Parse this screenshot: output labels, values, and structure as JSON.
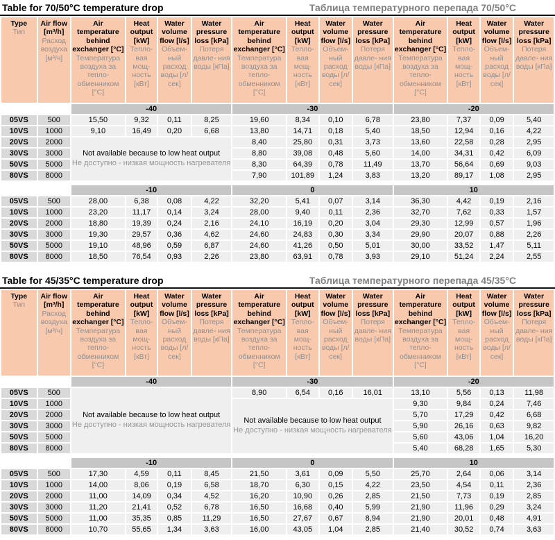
{
  "colors": {
    "header_bg": "#f9c9ae",
    "band_bg": "#c6c6c6",
    "label_bg": "#d9d9d9",
    "cell_bg": "#efefef",
    "ru_text": "#8f8f8f",
    "title_ru_text": "#808080"
  },
  "column_headers": {
    "type": {
      "en": "Type",
      "ru": "Тип"
    },
    "air_flow": {
      "en": "Air flow [m³/h]",
      "ru": "Расход воздуха [м³/ч]"
    },
    "group": [
      {
        "en": "Air temperature behind exchanger [°C]",
        "ru": "Температура воздуха за тепло- обменником [°C]"
      },
      {
        "en": "Heat output [kW]",
        "ru": "Тепло- вая мощ- ность [кВт]"
      },
      {
        "en": "Water volume flow [l/s]",
        "ru": "Объем- ный расход воды [л/сек]"
      },
      {
        "en": "Water pressure loss [kPa]",
        "ru": "Потеря давле- ния воды [кПа]"
      }
    ]
  },
  "not_available": {
    "en": "Not available because to low heat output",
    "ru": "Не доступно - низкая мощность нагревателя"
  },
  "tables": [
    {
      "title_en": "Table for 70/50°C temperature drop",
      "title_ru": "Таблица температурного перепада 70/50°C",
      "sections": [
        {
          "bands": [
            "-40",
            "-30",
            "-20"
          ],
          "na_blocks": [
            {
              "group": 0,
              "from_row": 2,
              "to_row": 5
            }
          ],
          "rows": [
            {
              "type": "05VS",
              "flow": "500",
              "groups": [
                [
                  "15,50",
                  "9,32",
                  "0,11",
                  "8,25"
                ],
                [
                  "19,60",
                  "8,34",
                  "0,10",
                  "6,78"
                ],
                [
                  "23,80",
                  "7,37",
                  "0,09",
                  "5,40"
                ]
              ]
            },
            {
              "type": "10VS",
              "flow": "1000",
              "groups": [
                [
                  "9,10",
                  "16,49",
                  "0,20",
                  "6,68"
                ],
                [
                  "13,80",
                  "14,71",
                  "0,18",
                  "5,40"
                ],
                [
                  "18,50",
                  "12,94",
                  "0,16",
                  "4,22"
                ]
              ]
            },
            {
              "type": "20VS",
              "flow": "2000",
              "groups": [
                null,
                [
                  "8,40",
                  "25,80",
                  "0,31",
                  "3,73"
                ],
                [
                  "13,60",
                  "22,58",
                  "0,28",
                  "2,95"
                ]
              ]
            },
            {
              "type": "30VS",
              "flow": "3000",
              "groups": [
                null,
                [
                  "8,80",
                  "39,08",
                  "0,48",
                  "5,60"
                ],
                [
                  "14,00",
                  "34,31",
                  "0,42",
                  "6,09"
                ]
              ]
            },
            {
              "type": "50VS",
              "flow": "5000",
              "groups": [
                null,
                [
                  "8,30",
                  "64,39",
                  "0,78",
                  "11,49"
                ],
                [
                  "13,70",
                  "56,64",
                  "0,69",
                  "9,03"
                ]
              ]
            },
            {
              "type": "80VS",
              "flow": "8000",
              "groups": [
                null,
                [
                  "7,90",
                  "101,89",
                  "1,24",
                  "3,83"
                ],
                [
                  "13,20",
                  "89,17",
                  "1,08",
                  "2,95"
                ]
              ]
            }
          ]
        },
        {
          "bands": [
            "-10",
            "0",
            "10"
          ],
          "na_blocks": [],
          "rows": [
            {
              "type": "05VS",
              "flow": "500",
              "groups": [
                [
                  "28,00",
                  "6,38",
                  "0,08",
                  "4,22"
                ],
                [
                  "32,20",
                  "5,41",
                  "0,07",
                  "3,14"
                ],
                [
                  "36,30",
                  "4,42",
                  "0,19",
                  "2,16"
                ]
              ]
            },
            {
              "type": "10VS",
              "flow": "1000",
              "groups": [
                [
                  "23,20",
                  "11,17",
                  "0,14",
                  "3,24"
                ],
                [
                  "28,00",
                  "9,40",
                  "0,11",
                  "2,36"
                ],
                [
                  "32,70",
                  "7,62",
                  "0,33",
                  "1,57"
                ]
              ]
            },
            {
              "type": "20VS",
              "flow": "2000",
              "groups": [
                [
                  "18,80",
                  "19,39",
                  "0,24",
                  "2,16"
                ],
                [
                  "24,10",
                  "16,19",
                  "0,20",
                  "3,04"
                ],
                [
                  "29,30",
                  "12,99",
                  "0,57",
                  "1,96"
                ]
              ]
            },
            {
              "type": "30VS",
              "flow": "3000",
              "groups": [
                [
                  "19,30",
                  "29,57",
                  "0,36",
                  "4,62"
                ],
                [
                  "24,60",
                  "24,83",
                  "0,30",
                  "3,34"
                ],
                [
                  "29,90",
                  "20,07",
                  "0,88",
                  "2,26"
                ]
              ]
            },
            {
              "type": "50VS",
              "flow": "5000",
              "groups": [
                [
                  "19,10",
                  "48,96",
                  "0,59",
                  "6,87"
                ],
                [
                  "24,60",
                  "41,26",
                  "0,50",
                  "5,01"
                ],
                [
                  "30,00",
                  "33,52",
                  "1,47",
                  "5,11"
                ]
              ]
            },
            {
              "type": "80VS",
              "flow": "8000",
              "groups": [
                [
                  "18,50",
                  "76,54",
                  "0,93",
                  "2,26"
                ],
                [
                  "23,80",
                  "63,91",
                  "0,78",
                  "3,93"
                ],
                [
                  "29,10",
                  "51,24",
                  "2,24",
                  "2,55"
                ]
              ]
            }
          ]
        }
      ]
    },
    {
      "title_en": "Table for 45/35°C temperature drop",
      "title_ru": "Таблица температурного перепада 45/35°C",
      "sections": [
        {
          "bands": [
            "-40",
            "-30",
            "-20"
          ],
          "na_blocks": [
            {
              "group": 0,
              "from_row": 0,
              "to_row": 5
            },
            {
              "group": 1,
              "from_row": 1,
              "to_row": 5
            }
          ],
          "rows": [
            {
              "type": "05VS",
              "flow": "500",
              "groups": [
                null,
                [
                  "8,90",
                  "6,54",
                  "0,16",
                  "16,01"
                ],
                [
                  "13,10",
                  "5,56",
                  "0,13",
                  "11,98"
                ]
              ]
            },
            {
              "type": "10VS",
              "flow": "1000",
              "groups": [
                null,
                null,
                [
                  "9,30",
                  "9,84",
                  "0,24",
                  "7,46"
                ]
              ]
            },
            {
              "type": "20VS",
              "flow": "2000",
              "groups": [
                null,
                null,
                [
                  "5,70",
                  "17,29",
                  "0,42",
                  "6,68"
                ]
              ]
            },
            {
              "type": "30VS",
              "flow": "3000",
              "groups": [
                null,
                null,
                [
                  "5,90",
                  "26,16",
                  "0,63",
                  "9,82"
                ]
              ]
            },
            {
              "type": "50VS",
              "flow": "5000",
              "groups": [
                null,
                null,
                [
                  "5,60",
                  "43,06",
                  "1,04",
                  "16,20"
                ]
              ]
            },
            {
              "type": "80VS",
              "flow": "8000",
              "groups": [
                null,
                null,
                [
                  "5,40",
                  "68,28",
                  "1,65",
                  "5,30"
                ]
              ]
            }
          ]
        },
        {
          "bands": [
            "-10",
            "0",
            "10"
          ],
          "na_blocks": [],
          "rows": [
            {
              "type": "05VS",
              "flow": "500",
              "groups": [
                [
                  "17,30",
                  "4,59",
                  "0,11",
                  "8,45"
                ],
                [
                  "21,50",
                  "3,61",
                  "0,09",
                  "5,50"
                ],
                [
                  "25,70",
                  "2,64",
                  "0,06",
                  "3,14"
                ]
              ]
            },
            {
              "type": "10VS",
              "flow": "1000",
              "groups": [
                [
                  "14,00",
                  "8,06",
                  "0,19",
                  "6,58"
                ],
                [
                  "18,70",
                  "6,30",
                  "0,15",
                  "4,22"
                ],
                [
                  "23,50",
                  "4,54",
                  "0,11",
                  "2,36"
                ]
              ]
            },
            {
              "type": "20VS",
              "flow": "2000",
              "groups": [
                [
                  "11,00",
                  "14,09",
                  "0,34",
                  "4,52"
                ],
                [
                  "16,20",
                  "10,90",
                  "0,26",
                  "2,85"
                ],
                [
                  "21,50",
                  "7,73",
                  "0,19",
                  "2,85"
                ]
              ]
            },
            {
              "type": "30VS",
              "flow": "3000",
              "groups": [
                [
                  "11,20",
                  "21,41",
                  "0,52",
                  "6,78"
                ],
                [
                  "16,50",
                  "16,68",
                  "0,40",
                  "5,99"
                ],
                [
                  "21,90",
                  "11,96",
                  "0,29",
                  "3,24"
                ]
              ]
            },
            {
              "type": "50VS",
              "flow": "5000",
              "groups": [
                [
                  "11,00",
                  "35,35",
                  "0,85",
                  "11,29"
                ],
                [
                  "16,50",
                  "27,67",
                  "0,67",
                  "8,94"
                ],
                [
                  "21,90",
                  "20,01",
                  "0,48",
                  "4,91"
                ]
              ]
            },
            {
              "type": "80VS",
              "flow": "8000",
              "groups": [
                [
                  "10,70",
                  "55,65",
                  "1,34",
                  "3,63"
                ],
                [
                  "16,00",
                  "43,05",
                  "1,04",
                  "2,85"
                ],
                [
                  "21,40",
                  "30,52",
                  "0,74",
                  "3,63"
                ]
              ]
            }
          ]
        }
      ]
    }
  ]
}
